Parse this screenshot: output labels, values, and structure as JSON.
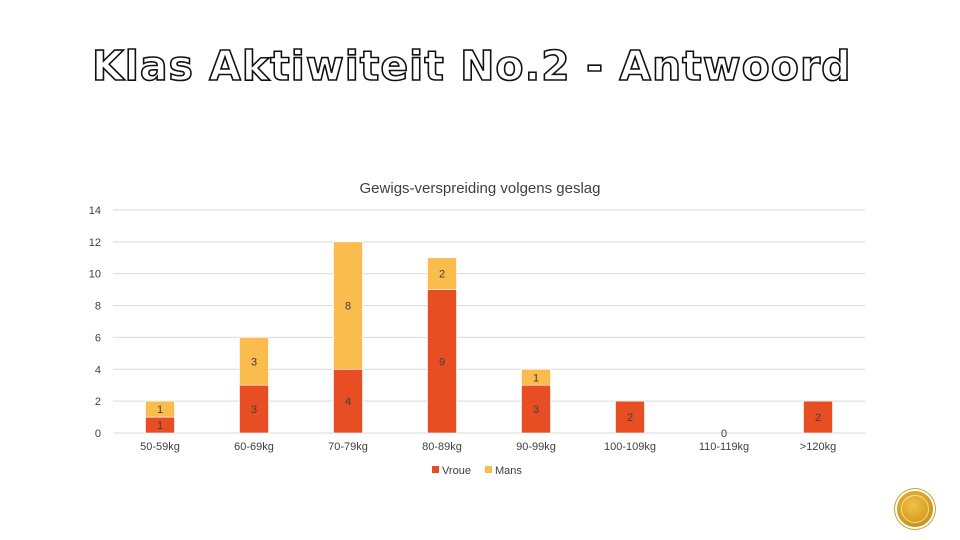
{
  "slide": {
    "title": "Klas Aktiwiteit No.2 - Antwoord"
  },
  "colors": {
    "vroue": "#E84E23",
    "mans": "#FBBC4E",
    "grid": "#D9D9D9",
    "text": "#404040"
  },
  "chart_data": {
    "type": "bar",
    "stacked": true,
    "title": "Gewigs-verspreiding volgens geslag",
    "xlabel": "",
    "ylabel": "",
    "categories": [
      "50-59kg",
      "60-69kg",
      "70-79kg",
      "80-89kg",
      "90-99kg",
      "100-109kg",
      "110-119kg",
      ">120kg"
    ],
    "series": [
      {
        "name": "Vroue",
        "values": [
          1,
          3,
          4,
          9,
          3,
          2,
          0,
          2
        ]
      },
      {
        "name": "Mans",
        "values": [
          1,
          3,
          8,
          2,
          1,
          null,
          null,
          null
        ]
      }
    ],
    "ylim": [
      0,
      14
    ],
    "yticks": [
      "0",
      "2",
      "4",
      "6",
      "8",
      "10",
      "12",
      "14"
    ],
    "grid": true,
    "legend_position": "bottom"
  }
}
